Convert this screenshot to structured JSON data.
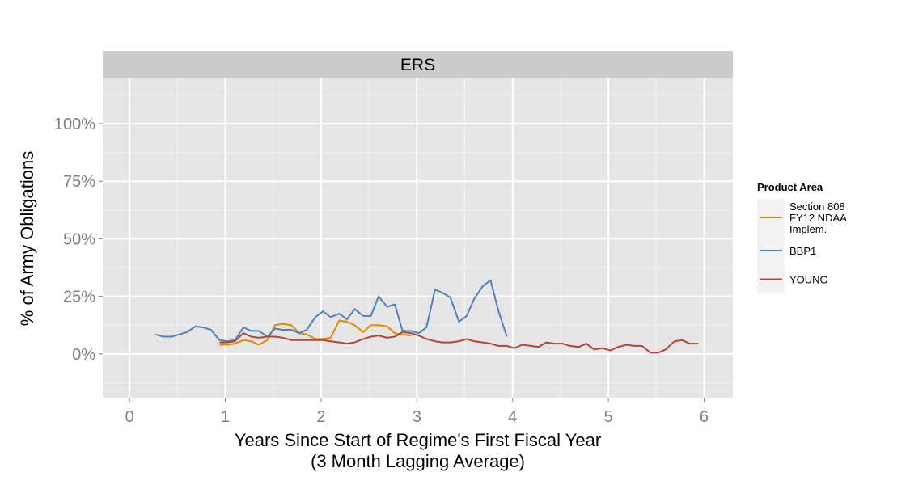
{
  "chart_data": {
    "type": "line",
    "facet": "ERS",
    "xlabel": "Years Since Start of Regime's First Fiscal Year",
    "xlabel_sub": "(3 Month Lagging Average)",
    "ylabel": "% of Army Obligations",
    "xlim": [
      -0.28,
      6.3
    ],
    "ylim": [
      -0.19,
      1.2
    ],
    "x_ticks": [
      0,
      1,
      2,
      3,
      4,
      5,
      6
    ],
    "x_tick_labels": [
      "0",
      "1",
      "2",
      "3",
      "4",
      "5",
      "6"
    ],
    "y_ticks": [
      0,
      0.25,
      0.5,
      0.75,
      1.0
    ],
    "y_tick_labels": [
      "0%",
      "25%",
      "50%",
      "75%",
      "100%"
    ],
    "grid": true,
    "legend_title": "Product Area",
    "legend_position": "right",
    "series": [
      {
        "name": "Section 808 FY12 NDAA Implem.",
        "label_lines": [
          "Section 808",
          "FY12 NDAA",
          "Implem."
        ],
        "color": "#E08B00",
        "x": [
          0.94,
          1.02,
          1.1,
          1.19,
          1.27,
          1.35,
          1.44,
          1.52,
          1.6,
          1.69,
          1.77,
          1.85,
          1.94,
          2.02,
          2.1,
          2.19,
          2.27,
          2.35,
          2.44,
          2.52,
          2.6,
          2.69,
          2.77,
          2.85,
          2.94
        ],
        "y": [
          0.04,
          0.04,
          0.045,
          0.06,
          0.055,
          0.04,
          0.06,
          0.125,
          0.13,
          0.125,
          0.09,
          0.085,
          0.065,
          0.065,
          0.07,
          0.145,
          0.14,
          0.125,
          0.095,
          0.125,
          0.125,
          0.12,
          0.09,
          0.085,
          0.08
        ]
      },
      {
        "name": "BBP1",
        "label_lines": [
          "BBP1"
        ],
        "color": "#4F81BD",
        "x": [
          0.27,
          0.35,
          0.44,
          0.52,
          0.6,
          0.69,
          0.77,
          0.85,
          0.94,
          1.02,
          1.1,
          1.19,
          1.27,
          1.35,
          1.44,
          1.52,
          1.6,
          1.69,
          1.77,
          1.85,
          1.94,
          2.02,
          2.1,
          2.19,
          2.27,
          2.35,
          2.44,
          2.52,
          2.6,
          2.69,
          2.77,
          2.85,
          2.94,
          3.02,
          3.1,
          3.19,
          3.27,
          3.35,
          3.44,
          3.52,
          3.6,
          3.69,
          3.77,
          3.85,
          3.94
        ],
        "y": [
          0.085,
          0.075,
          0.075,
          0.085,
          0.095,
          0.12,
          0.115,
          0.105,
          0.06,
          0.055,
          0.06,
          0.115,
          0.1,
          0.1,
          0.075,
          0.11,
          0.105,
          0.105,
          0.09,
          0.105,
          0.16,
          0.185,
          0.16,
          0.175,
          0.15,
          0.195,
          0.165,
          0.165,
          0.25,
          0.205,
          0.215,
          0.1,
          0.1,
          0.09,
          0.115,
          0.28,
          0.265,
          0.245,
          0.14,
          0.165,
          0.24,
          0.295,
          0.32,
          0.19,
          0.075
        ]
      },
      {
        "name": "YOUNG",
        "label_lines": [
          "YOUNG"
        ],
        "color": "#B2443C",
        "x": [
          0.94,
          1.02,
          1.1,
          1.19,
          1.27,
          1.35,
          1.44,
          1.52,
          1.6,
          1.69,
          1.77,
          1.85,
          1.94,
          2.02,
          2.1,
          2.19,
          2.27,
          2.35,
          2.44,
          2.52,
          2.6,
          2.69,
          2.77,
          2.85,
          2.94,
          3.02,
          3.1,
          3.19,
          3.27,
          3.35,
          3.44,
          3.52,
          3.6,
          3.69,
          3.77,
          3.85,
          3.94,
          4.02,
          4.1,
          4.19,
          4.27,
          4.35,
          4.44,
          4.52,
          4.6,
          4.69,
          4.77,
          4.85,
          4.94,
          5.02,
          5.1,
          5.19,
          5.27,
          5.35,
          5.44,
          5.52,
          5.6,
          5.69,
          5.77,
          5.85,
          5.94
        ],
        "y": [
          0.05,
          0.05,
          0.055,
          0.09,
          0.075,
          0.07,
          0.075,
          0.075,
          0.07,
          0.06,
          0.06,
          0.06,
          0.06,
          0.06,
          0.055,
          0.05,
          0.045,
          0.05,
          0.065,
          0.075,
          0.08,
          0.07,
          0.075,
          0.095,
          0.09,
          0.08,
          0.065,
          0.055,
          0.05,
          0.05,
          0.055,
          0.065,
          0.055,
          0.05,
          0.045,
          0.035,
          0.035,
          0.025,
          0.04,
          0.035,
          0.03,
          0.05,
          0.045,
          0.045,
          0.035,
          0.03,
          0.045,
          0.02,
          0.025,
          0.015,
          0.03,
          0.04,
          0.035,
          0.035,
          0.005,
          0.005,
          0.02,
          0.055,
          0.06,
          0.045,
          0.045
        ]
      }
    ]
  }
}
